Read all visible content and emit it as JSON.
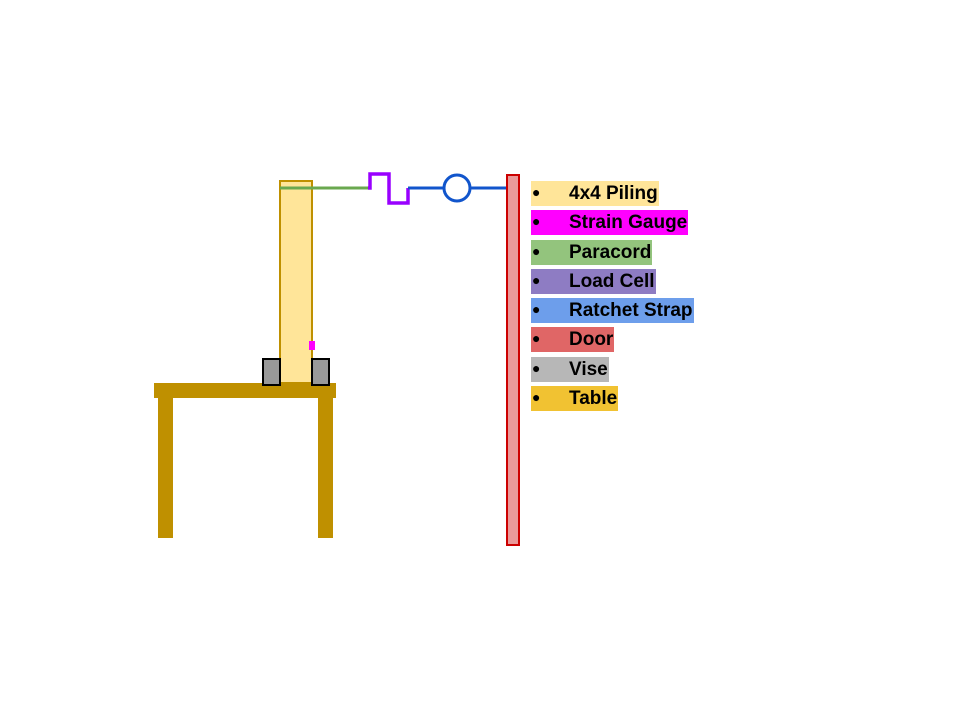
{
  "legend": {
    "bullet": "●",
    "items": [
      {
        "key": "piling",
        "label": "4x4 Piling",
        "color": "#ffe599"
      },
      {
        "key": "strain_gauge",
        "label": "Strain Gauge",
        "color": "#ff00ff"
      },
      {
        "key": "paracord",
        "label": "Paracord",
        "color": "#93c47d"
      },
      {
        "key": "load_cell",
        "label": "Load Cell",
        "color": "#8e7cc3"
      },
      {
        "key": "ratchet_strap",
        "label": "Ratchet Strap",
        "color": "#6d9eeb"
      },
      {
        "key": "door",
        "label": "Door",
        "color": "#e06666"
      },
      {
        "key": "vise",
        "label": "Vise",
        "color": "#b7b7b7"
      },
      {
        "key": "table",
        "label": "Table",
        "color": "#f1c232"
      }
    ]
  },
  "colors": {
    "piling_fill": "#ffe599",
    "piling_stroke": "#bf9000",
    "strain_gauge": "#ff00ff",
    "paracord": "#6aa84f",
    "load_cell": "#9900ff",
    "ratchet_strap": "#1155cc",
    "door_fill": "#ea9999",
    "door_stroke": "#cc0000",
    "vise_fill": "#999999",
    "vise_stroke": "#000000",
    "table": "#bf9000"
  }
}
